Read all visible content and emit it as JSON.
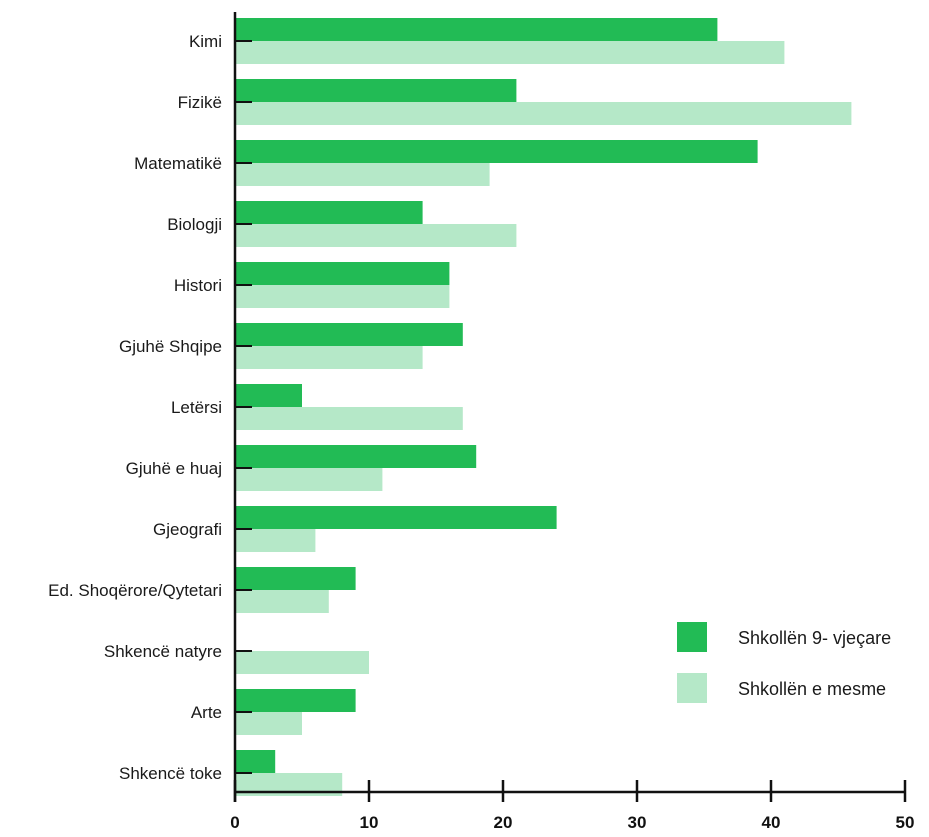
{
  "chart_data": {
    "type": "bar",
    "orientation": "horizontal",
    "categories": [
      "Kimi",
      "Fizikë",
      "Matematikë",
      "Biologji",
      "Histori",
      "Gjuhë Shqipe",
      "Letërsi",
      "Gjuhë e huaj",
      "Gjeografi",
      "Ed. Shoqërore/Qytetari",
      "Shkencë natyre",
      "Arte",
      "Shkencë toke"
    ],
    "series": [
      {
        "name": "Shkollën 9- vjeçare",
        "color": "#22bb55",
        "values": [
          36,
          21,
          39,
          14,
          16,
          17,
          5,
          18,
          24,
          9,
          0,
          9,
          3
        ]
      },
      {
        "name": "Shkollën e mesme",
        "color": "#b5e8c8",
        "values": [
          41,
          46,
          19,
          21,
          16,
          14,
          17,
          11,
          6,
          7,
          10,
          5,
          8
        ]
      }
    ],
    "xticks": [
      0,
      10,
      20,
      30,
      40,
      50
    ],
    "xlim": [
      0,
      50
    ],
    "legend": "right",
    "grid": false
  }
}
